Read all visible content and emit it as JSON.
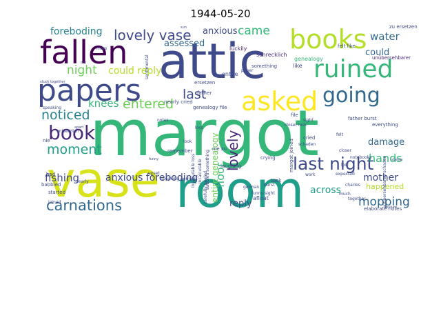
{
  "title": "1944-05-20",
  "palette": [
    "#440154",
    "#482878",
    "#3e4a89",
    "#31688e",
    "#26828e",
    "#1f9e89",
    "#35b779",
    "#6ece58",
    "#b5de2b",
    "#fde725"
  ],
  "words": [
    {
      "text": "margot",
      "color": "#35b779"
    },
    {
      "text": "attic",
      "color": "#3e4a89"
    },
    {
      "text": "vase",
      "color": "#d8e219"
    },
    {
      "text": "room",
      "color": "#1f9e89"
    },
    {
      "text": "fallen",
      "color": "#440154"
    },
    {
      "text": "papers",
      "color": "#3e4a89"
    },
    {
      "text": "books",
      "color": "#b5de2b"
    },
    {
      "text": "asked",
      "color": "#fde725"
    },
    {
      "text": "ruined",
      "color": "#35b779"
    },
    {
      "text": "going",
      "color": "#31688e"
    },
    {
      "text": "book",
      "color": "#482878"
    },
    {
      "text": "last night",
      "color": "#3e4a89"
    },
    {
      "text": "lovely vase",
      "color": "#3e4a89"
    },
    {
      "text": "carnations",
      "color": "#31688e"
    },
    {
      "text": "entered",
      "color": "#6ece58"
    },
    {
      "text": "noticed",
      "color": "#26828e"
    },
    {
      "text": "moment",
      "color": "#1f9e89"
    },
    {
      "text": "lovely",
      "color": "#482878"
    },
    {
      "text": "last",
      "color": "#3e4a89"
    },
    {
      "text": "night",
      "color": "#6ece58"
    },
    {
      "text": "came",
      "color": "#35b779"
    },
    {
      "text": "water",
      "color": "#31688e"
    },
    {
      "text": "knees",
      "color": "#35b779"
    },
    {
      "text": "mopping",
      "color": "#31688e"
    },
    {
      "text": "hands",
      "color": "#35b779"
    },
    {
      "text": "mother",
      "color": "#3e4a89"
    },
    {
      "text": "fishing",
      "color": "#3e4a89"
    },
    {
      "text": "anxious foreboding",
      "color": "#3e4a89"
    },
    {
      "text": "foreboding",
      "color": "#26828e"
    },
    {
      "text": "could reply",
      "color": "#b5de2b"
    },
    {
      "text": "floor",
      "color": "#35b779"
    },
    {
      "text": "across",
      "color": "#1f9e89"
    },
    {
      "text": "reply",
      "color": "#3e4a89"
    },
    {
      "text": "could",
      "color": "#31688e"
    },
    {
      "text": "damage",
      "color": "#31688e"
    },
    {
      "text": "happened",
      "color": "#b5de2b"
    },
    {
      "text": "anxious",
      "color": "#3e4a89"
    },
    {
      "text": "assessed",
      "color": "#31688e"
    },
    {
      "text": "entire genealogy",
      "color": "#6ece58"
    },
    {
      "text": "zu ersetzen",
      "color": "#3e4a89"
    },
    {
      "text": "unübersehbarer",
      "color": "#482878"
    },
    {
      "text": "genealogy",
      "color": "#35b779"
    },
    {
      "text": "luckily",
      "color": "#482878"
    },
    {
      "text": "entire",
      "color": "#3e4a89"
    },
    {
      "text": "schrecklich",
      "color": "#482878"
    },
    {
      "text": "something",
      "color": "#3e4a89"
    },
    {
      "text": "like",
      "color": "#3e4a89"
    },
    {
      "text": "felt like",
      "color": "#3e4a89"
    },
    {
      "text": "nearly cried",
      "color": "#3e4a89"
    },
    {
      "text": "genealogy file",
      "color": "#3e4a89"
    },
    {
      "text": "entsetzlich",
      "color": "#3e4a89"
    },
    {
      "text": "remember",
      "color": "#3e4a89"
    },
    {
      "text": "nie zu",
      "color": "#3e4a89"
    },
    {
      "text": "laughing",
      "color": "#3e4a89"
    },
    {
      "text": "crying",
      "color": "#3e4a89"
    },
    {
      "text": "babbled something",
      "color": "#3e4a89"
    },
    {
      "text": "margot joined",
      "color": "#3e4a89"
    },
    {
      "text": "notes",
      "color": "#3e4a89"
    },
    {
      "text": "notebooks",
      "color": "#3e4a89"
    },
    {
      "text": "everything",
      "color": "#3e4a89"
    },
    {
      "text": "speaking german",
      "color": "#3e4a89"
    },
    {
      "text": "father burst",
      "color": "#3e4a89"
    },
    {
      "text": "elaborate notes",
      "color": "#3e4a89"
    },
    {
      "text": "carefully peeled",
      "color": "#3e4a89"
    },
    {
      "text": "afloat",
      "color": "#3e4a89"
    },
    {
      "text": "took",
      "color": "#3e4a89"
    },
    {
      "text": "started",
      "color": "#3e4a89"
    },
    {
      "text": "joined",
      "color": "#3e4a89"
    },
    {
      "text": "babbled",
      "color": "#3e4a89"
    },
    {
      "text": "bad",
      "color": "#3e4a89"
    },
    {
      "text": "nearly",
      "color": "#3e4a89"
    },
    {
      "text": "nie",
      "color": "#3e4a89"
    },
    {
      "text": "speaking",
      "color": "#3e4a89"
    },
    {
      "text": "upset",
      "color": "#3e4a89"
    },
    {
      "text": "funny sight",
      "color": "#3e4a89"
    },
    {
      "text": "german",
      "color": "#3e4a89"
    },
    {
      "text": "incalculable loss",
      "color": "#3e4a89"
    },
    {
      "text": "incalculable",
      "color": "#3e4a89"
    },
    {
      "text": "unübersehbaren schaden",
      "color": "#3e4a89"
    },
    {
      "text": "closer look",
      "color": "#3e4a89"
    },
    {
      "text": "expected",
      "color": "#3e4a89"
    },
    {
      "text": "sentimental",
      "color": "#3e4a89"
    },
    {
      "text": "stuck together",
      "color": "#3e4a89"
    },
    {
      "text": "lost",
      "color": "#3e4a89"
    },
    {
      "text": "burst",
      "color": "#3e4a89"
    },
    {
      "text": "sight",
      "color": "#3e4a89"
    },
    {
      "text": "work",
      "color": "#3e4a89"
    },
    {
      "text": "schaden",
      "color": "#3e4a89"
    },
    {
      "text": "charles",
      "color": "#3e4a89"
    },
    {
      "text": "much",
      "color": "#3e4a89"
    },
    {
      "text": "ersetzen",
      "color": "#3e4a89"
    },
    {
      "text": "cried",
      "color": "#3e4a89"
    },
    {
      "text": "father",
      "color": "#3e4a89"
    },
    {
      "text": "file",
      "color": "#3e4a89"
    },
    {
      "text": "loss",
      "color": "#3e4a89"
    },
    {
      "text": "paper",
      "color": "#3e4a89"
    },
    {
      "text": "felt",
      "color": "#3e4a89"
    },
    {
      "text": "look",
      "color": "#3e4a89"
    },
    {
      "text": "sheets",
      "color": "#3e4a89"
    },
    {
      "text": "dry",
      "color": "#3e4a89"
    },
    {
      "text": "mors",
      "color": "#3e4a89"
    },
    {
      "text": "apart",
      "color": "#3e4a89"
    },
    {
      "text": "funny",
      "color": "#3e4a89"
    },
    {
      "text": "closer",
      "color": "#3e4a89"
    },
    {
      "text": "together",
      "color": "#3e4a89"
    },
    {
      "text": "sun",
      "color": "#3e4a89"
    },
    {
      "text": "asylum",
      "color": "#3e4a89"
    }
  ]
}
